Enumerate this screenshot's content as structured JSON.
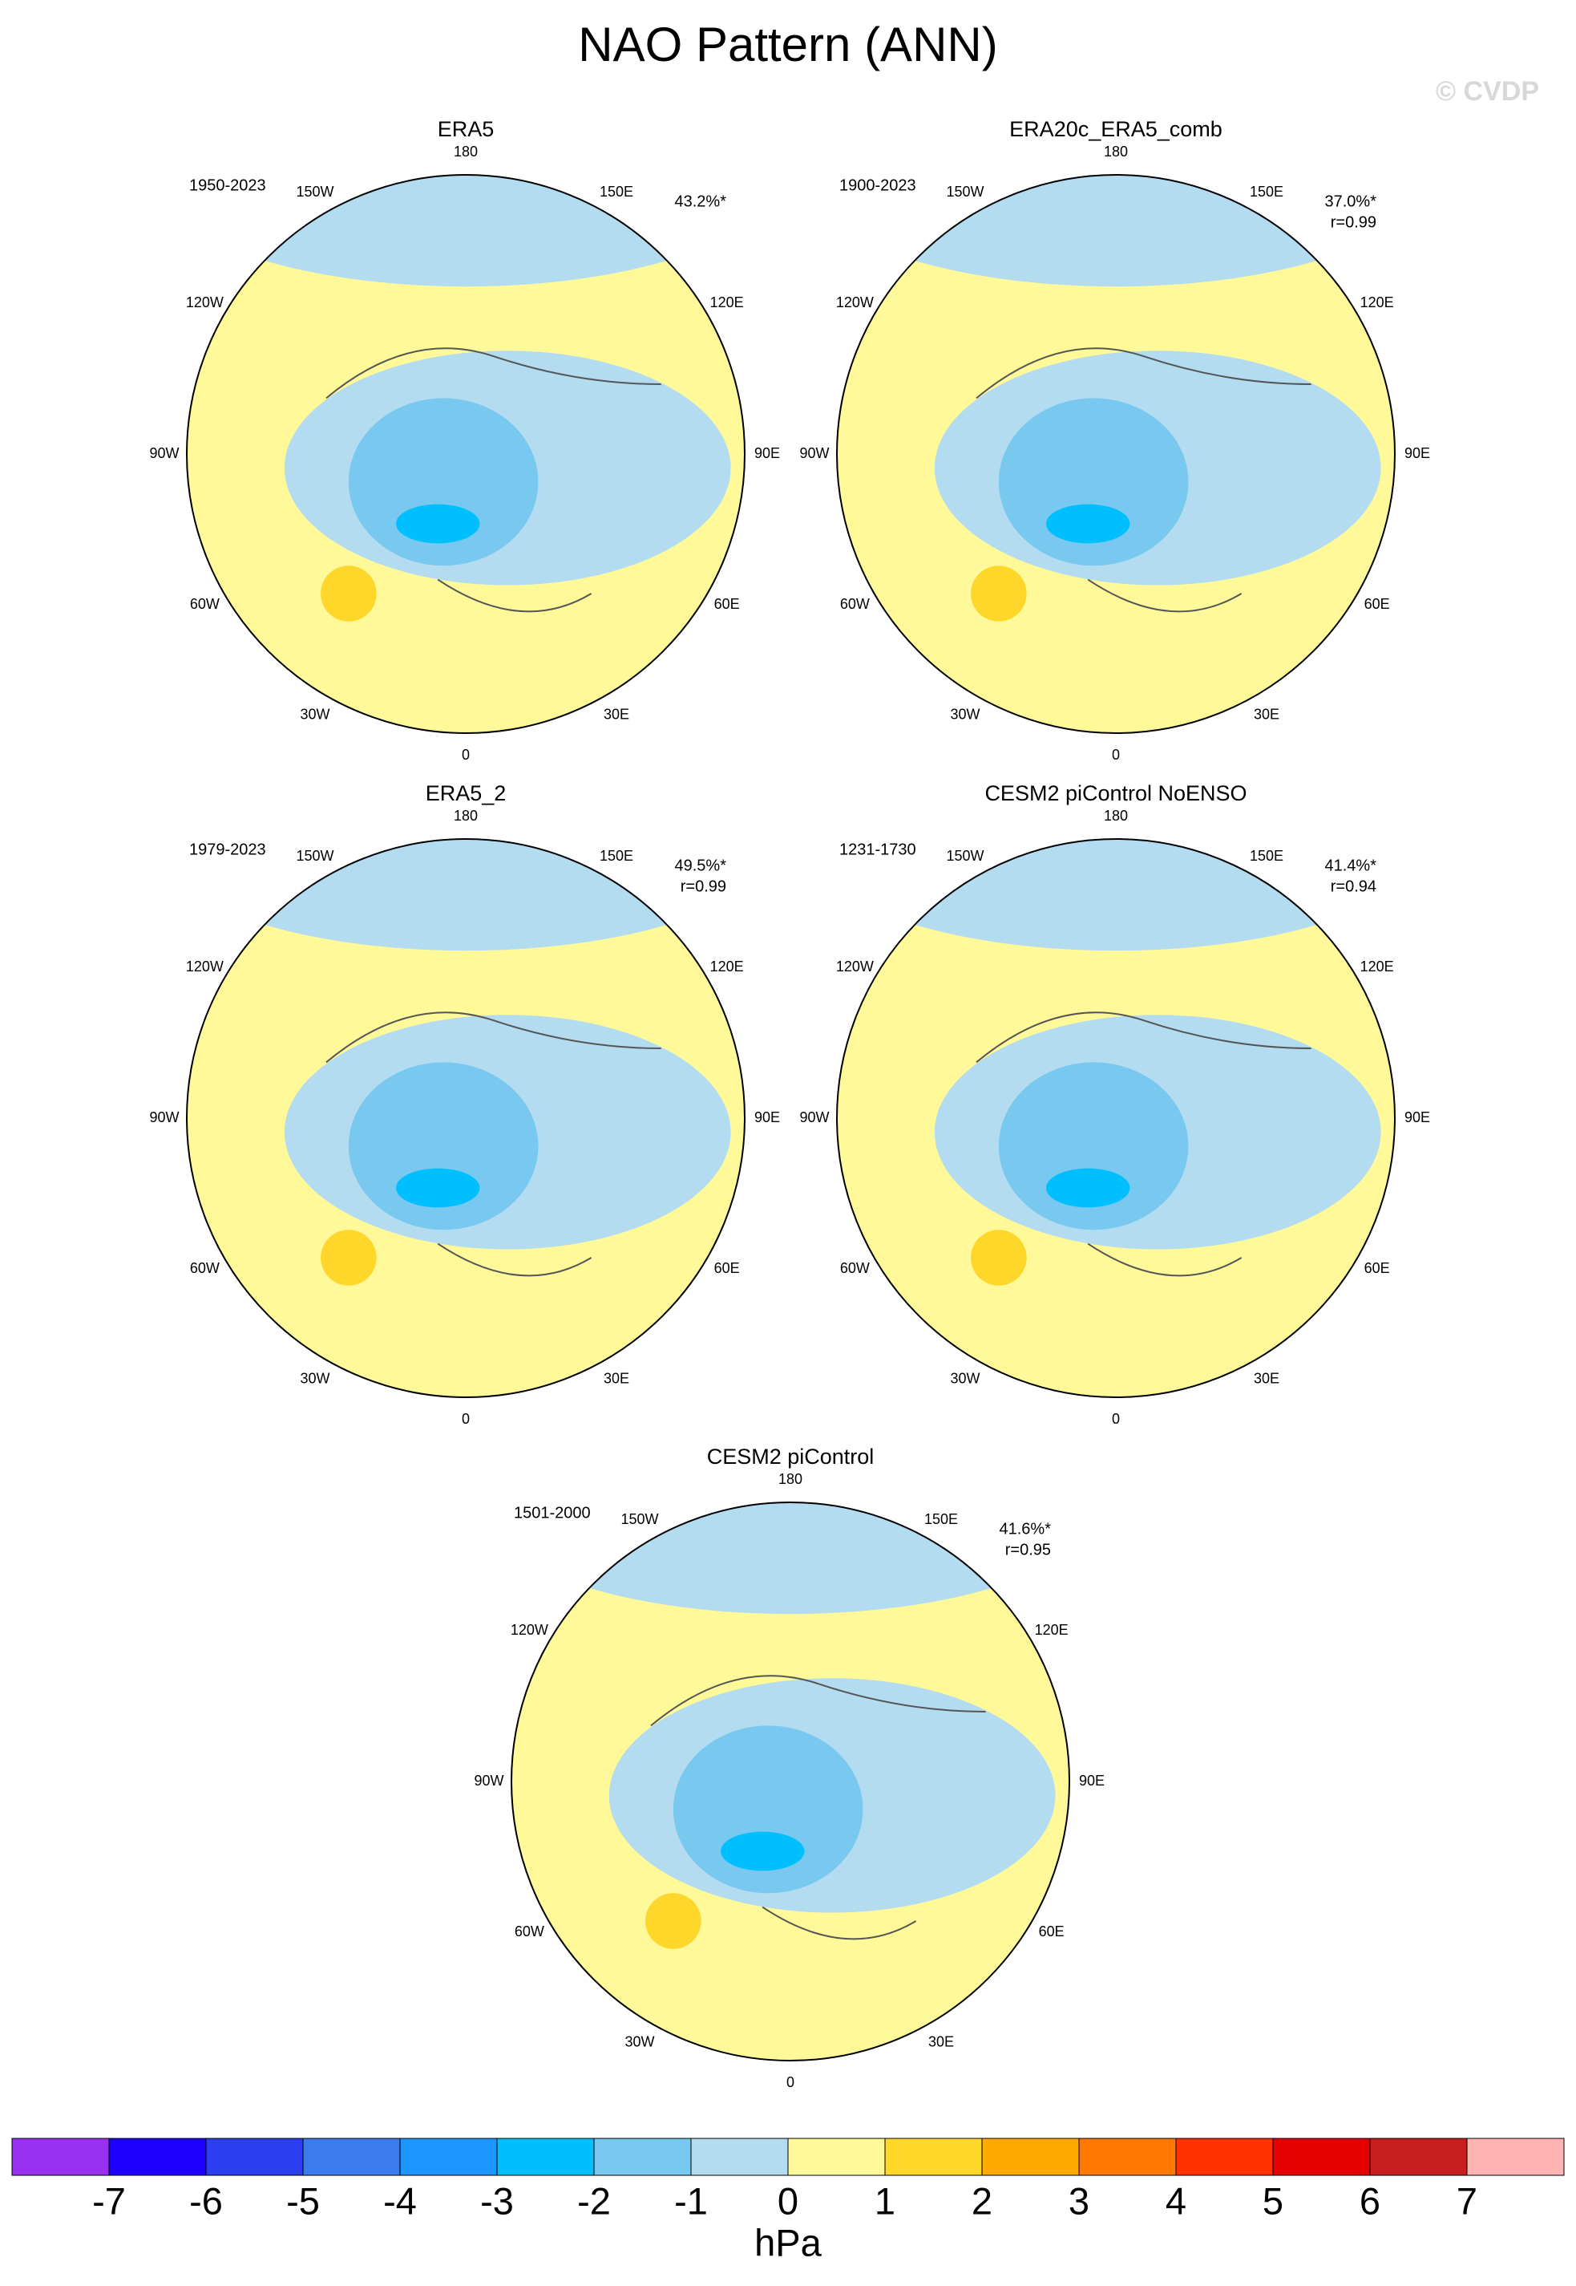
{
  "title": "NAO Pattern (ANN)",
  "watermark": "© CVDP",
  "lon_labels": [
    "180",
    "150E",
    "120E",
    "90E",
    "60E",
    "30E",
    "0",
    "30W",
    "60W",
    "90W",
    "120W",
    "150W"
  ],
  "panels": [
    {
      "name": "ERA5",
      "period": "1950-2023",
      "pct": "43.2%*"
    },
    {
      "name": "ERA20c_ERA5_comb",
      "period": "1900-2023",
      "pct": "37.0%*",
      "r": "r=0.99"
    },
    {
      "name": "ERA5_2",
      "period": "1979-2023",
      "pct": "49.5%*",
      "r": "r=0.99"
    },
    {
      "name": "CESM2 piControl NoENSO",
      "period": "1231-1730",
      "pct": "41.4%*",
      "r": "r=0.94"
    },
    {
      "name": "CESM2 piControl",
      "period": "1501-2000",
      "pct": "41.6%*",
      "r": "r=0.95"
    }
  ],
  "colorbar": {
    "colors": [
      "#9932f0",
      "#1e00ff",
      "#2b3ff0",
      "#3a7cec",
      "#1e96ff",
      "#00bfff",
      "#78c8f0",
      "#b4dcf0",
      "#fff99a",
      "#ffd72a",
      "#ffaa00",
      "#ff7800",
      "#ff3200",
      "#e60000",
      "#c81e1e",
      "#ffb4b4"
    ],
    "ticks": [
      -7,
      -6,
      -5,
      -4,
      -3,
      -2,
      -1,
      0,
      1,
      2,
      3,
      4,
      5,
      6,
      7
    ],
    "units": "hPa"
  }
}
